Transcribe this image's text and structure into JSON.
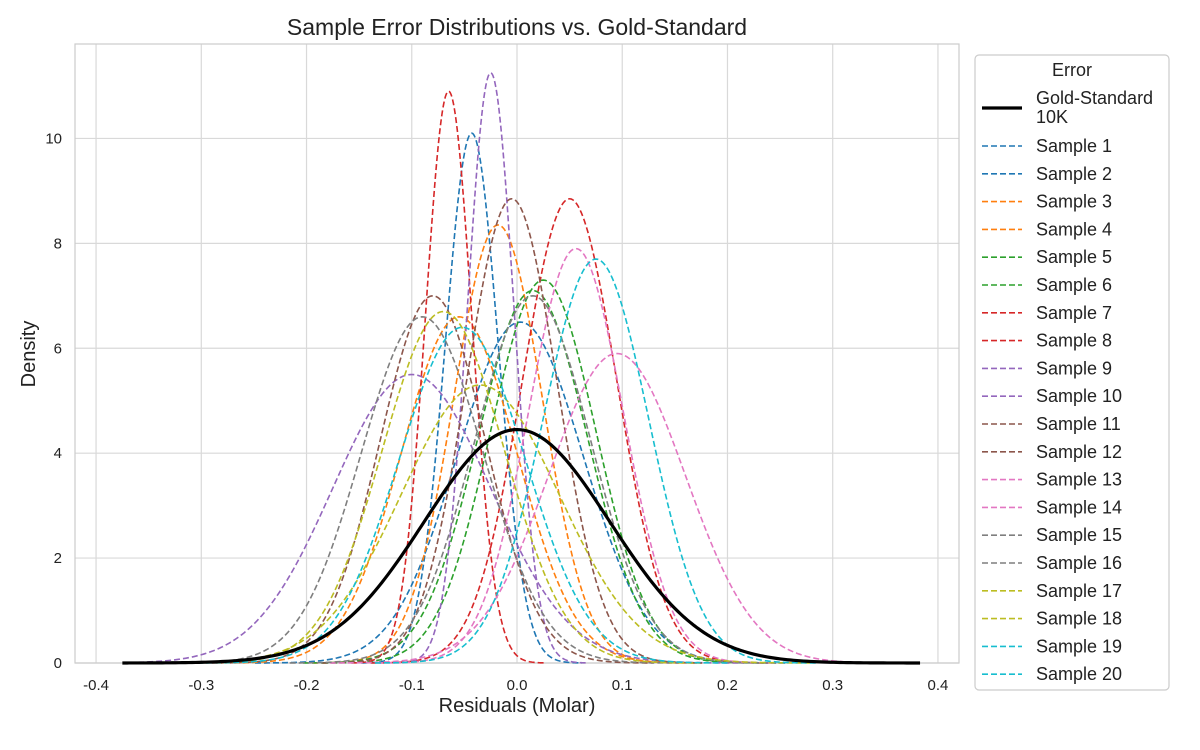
{
  "chart_data": {
    "type": "line",
    "title": "Sample Error Distributions vs. Gold-Standard",
    "xlabel": "Residuals (Molar)",
    "ylabel": "Density",
    "xlim": [
      -0.42,
      0.42
    ],
    "ylim": [
      0,
      11.8
    ],
    "xticks": [
      -0.4,
      -0.3,
      -0.2,
      -0.1,
      0.0,
      0.1,
      0.2,
      0.3,
      0.4
    ],
    "xtick_labels": [
      "-0.4",
      "-0.3",
      "-0.2",
      "-0.1",
      "0.0",
      "0.1",
      "0.2",
      "0.3",
      "0.4"
    ],
    "yticks": [
      0,
      2,
      4,
      6,
      8,
      10
    ],
    "ytick_labels": [
      "0",
      "2",
      "4",
      "6",
      "8",
      "10"
    ],
    "grid": true,
    "legend": {
      "title": "Error",
      "placement": "outside-right"
    },
    "gold_standard": {
      "name": "Gold-Standard 10K",
      "name_lines": [
        "Gold-Standard",
        "10K"
      ],
      "color": "#000000",
      "style": "solid",
      "x_range": [
        -0.375,
        0.383
      ],
      "peak_x": 0.0,
      "peak_y": 4.45,
      "sd": 0.088
    },
    "series": [
      {
        "name": "Sample 1",
        "color": "#1f77b4",
        "peak_x": -0.043,
        "peak_y": 10.1,
        "sd": 0.025
      },
      {
        "name": "Sample 2",
        "color": "#1f77b4",
        "peak_x": 0.003,
        "peak_y": 6.5,
        "sd": 0.06
      },
      {
        "name": "Sample 3",
        "color": "#ff7f0e",
        "peak_x": -0.018,
        "peak_y": 8.35,
        "sd": 0.042
      },
      {
        "name": "Sample 4",
        "color": "#ff7f0e",
        "peak_x": -0.055,
        "peak_y": 6.6,
        "sd": 0.055
      },
      {
        "name": "Sample 5",
        "color": "#2ca02c",
        "peak_x": 0.025,
        "peak_y": 7.3,
        "sd": 0.05
      },
      {
        "name": "Sample 6",
        "color": "#2ca02c",
        "peak_x": 0.015,
        "peak_y": 7.1,
        "sd": 0.052
      },
      {
        "name": "Sample 7",
        "color": "#d62728",
        "peak_x": -0.065,
        "peak_y": 10.9,
        "sd": 0.022
      },
      {
        "name": "Sample 8",
        "color": "#d62728",
        "peak_x": 0.05,
        "peak_y": 8.85,
        "sd": 0.045
      },
      {
        "name": "Sample 9",
        "color": "#9467bd",
        "peak_x": -0.025,
        "peak_y": 11.25,
        "sd": 0.022
      },
      {
        "name": "Sample 10",
        "color": "#9467bd",
        "peak_x": -0.1,
        "peak_y": 5.5,
        "sd": 0.075
      },
      {
        "name": "Sample 11",
        "color": "#8c564b",
        "peak_x": -0.005,
        "peak_y": 8.85,
        "sd": 0.043
      },
      {
        "name": "Sample 12",
        "color": "#8c564b",
        "peak_x": -0.08,
        "peak_y": 7.0,
        "sd": 0.05
      },
      {
        "name": "Sample 13",
        "color": "#e377c2",
        "peak_x": 0.056,
        "peak_y": 7.9,
        "sd": 0.045
      },
      {
        "name": "Sample 14",
        "color": "#e377c2",
        "peak_x": 0.095,
        "peak_y": 5.9,
        "sd": 0.065
      },
      {
        "name": "Sample 15",
        "color": "#7f7f7f",
        "peak_x": -0.09,
        "peak_y": 6.6,
        "sd": 0.058
      },
      {
        "name": "Sample 16",
        "color": "#7f7f7f",
        "peak_x": 0.015,
        "peak_y": 7.0,
        "sd": 0.055
      },
      {
        "name": "Sample 17",
        "color": "#bcbd22",
        "peak_x": -0.07,
        "peak_y": 6.7,
        "sd": 0.058
      },
      {
        "name": "Sample 18",
        "color": "#bcbd22",
        "peak_x": -0.035,
        "peak_y": 5.3,
        "sd": 0.075
      },
      {
        "name": "Sample 19",
        "color": "#17becf",
        "peak_x": -0.052,
        "peak_y": 6.4,
        "sd": 0.06
      },
      {
        "name": "Sample 20",
        "color": "#17becf",
        "peak_x": 0.075,
        "peak_y": 7.7,
        "sd": 0.05
      }
    ]
  }
}
